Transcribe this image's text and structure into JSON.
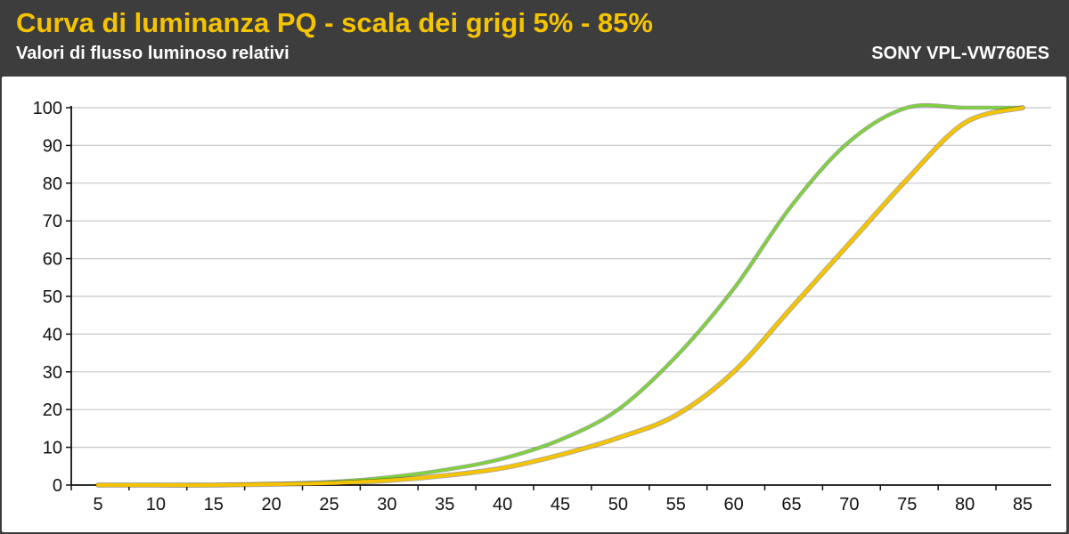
{
  "header": {
    "title": "Curva di luminanza PQ - scala dei grigi 5% - 85%",
    "subtitle": "Valori di flusso luminoso relativi",
    "brand": "SONY VPL-VW760ES"
  },
  "colors": {
    "header_bg": "#3d3d3d",
    "title": "#f5c400",
    "text": "#ffffff",
    "plot_bg": "#ffffff",
    "grid": "#c8c8c8",
    "axis": "#111111"
  },
  "chart_data": {
    "type": "line",
    "title": "Curva di luminanza PQ - scala dei grigi 5% - 85%",
    "subtitle": "Valori di flusso luminoso relativi",
    "xlabel": "",
    "ylabel": "",
    "x": [
      5,
      10,
      15,
      20,
      25,
      30,
      35,
      40,
      45,
      50,
      55,
      60,
      65,
      70,
      75,
      80,
      85
    ],
    "xlim": [
      5,
      85
    ],
    "ylim": [
      0,
      100
    ],
    "yticks": [
      0,
      10,
      20,
      30,
      40,
      50,
      60,
      70,
      80,
      90,
      100
    ],
    "grid": true,
    "legend": "none",
    "series": [
      {
        "color": "#7ed23a",
        "values": [
          0,
          0,
          0,
          0.3,
          0.8,
          2,
          4,
          7,
          12,
          20,
          34,
          52,
          74,
          91,
          100,
          100,
          100
        ]
      },
      {
        "color": "#f5c400",
        "values": [
          0,
          0,
          0,
          0.2,
          0.5,
          1.2,
          2.5,
          4.5,
          8,
          12.5,
          18.5,
          30,
          47,
          64,
          81,
          96,
          100
        ]
      }
    ]
  }
}
